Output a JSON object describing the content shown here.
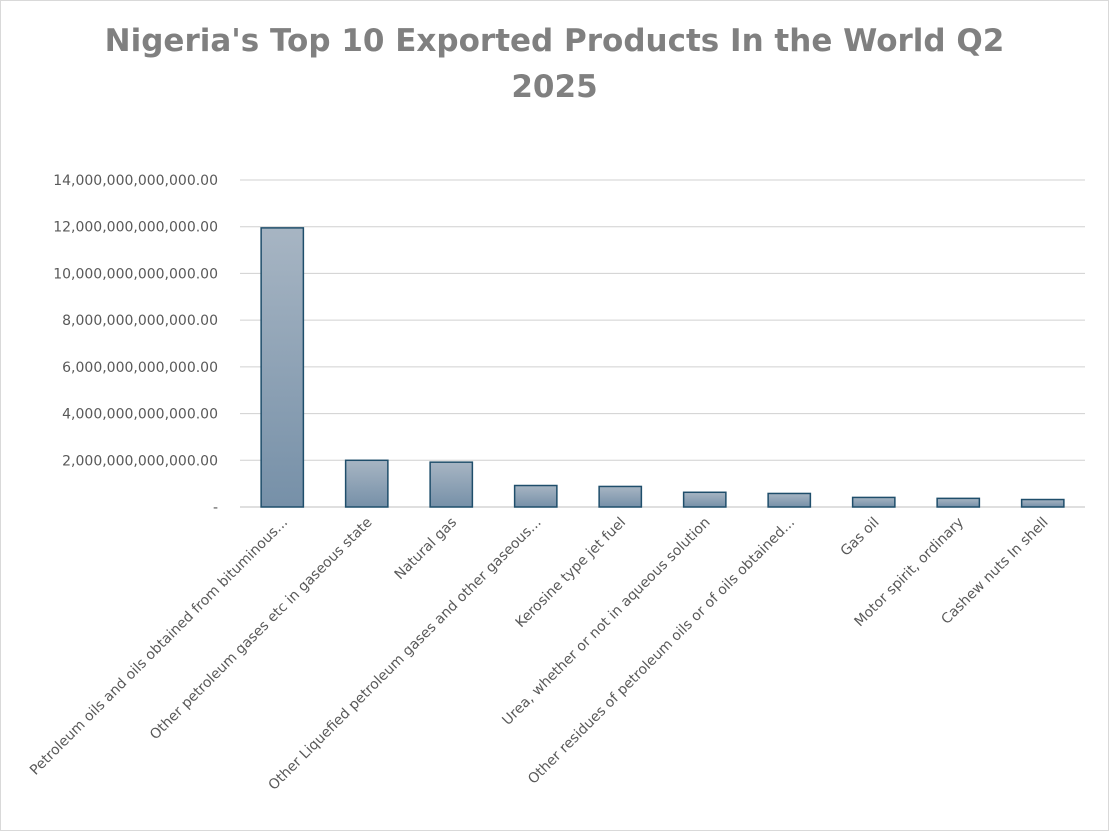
{
  "chart_data": {
    "type": "bar",
    "title_lines": [
      "Nigeria's Top 10 Exported Products In the World Q2",
      "2025"
    ],
    "categories": [
      "Petroleum oils and oils obtained from bituminous...",
      "Other petroleum gases etc in gaseous state",
      "Natural gas",
      "Other Liquefied petroleum gases and other gaseous...",
      "Kerosine type jet fuel",
      "Urea, whether or not in aqueous solution",
      "Other residues of petroleum oils or of oils obtained...",
      "Gas oil",
      "Motor spirit, ordinary",
      "Cashew nuts In shell"
    ],
    "values": [
      11950000000000,
      2000000000000,
      1920000000000,
      920000000000,
      880000000000,
      630000000000,
      580000000000,
      410000000000,
      370000000000,
      320000000000
    ],
    "yticks": [
      0,
      2000000000000,
      4000000000000,
      6000000000000,
      8000000000000,
      10000000000000,
      12000000000000,
      14000000000000
    ],
    "ytick_labels": [
      "-",
      "2,000,000,000,000.00",
      "4,000,000,000,000.00",
      "6,000,000,000,000.00",
      "8,000,000,000,000.00",
      "10,000,000,000,000.00",
      "12,000,000,000,000.00",
      "14,000,000,000,000.00"
    ],
    "ylim": [
      0,
      14000000000000
    ],
    "grid": true,
    "colors": {
      "bar_top": "#a7b5c3",
      "bar_bottom": "#7690a8",
      "bar_border": "#1f4e6b",
      "grid": "#d0d0d0",
      "axis": "#bfbfbf"
    }
  }
}
